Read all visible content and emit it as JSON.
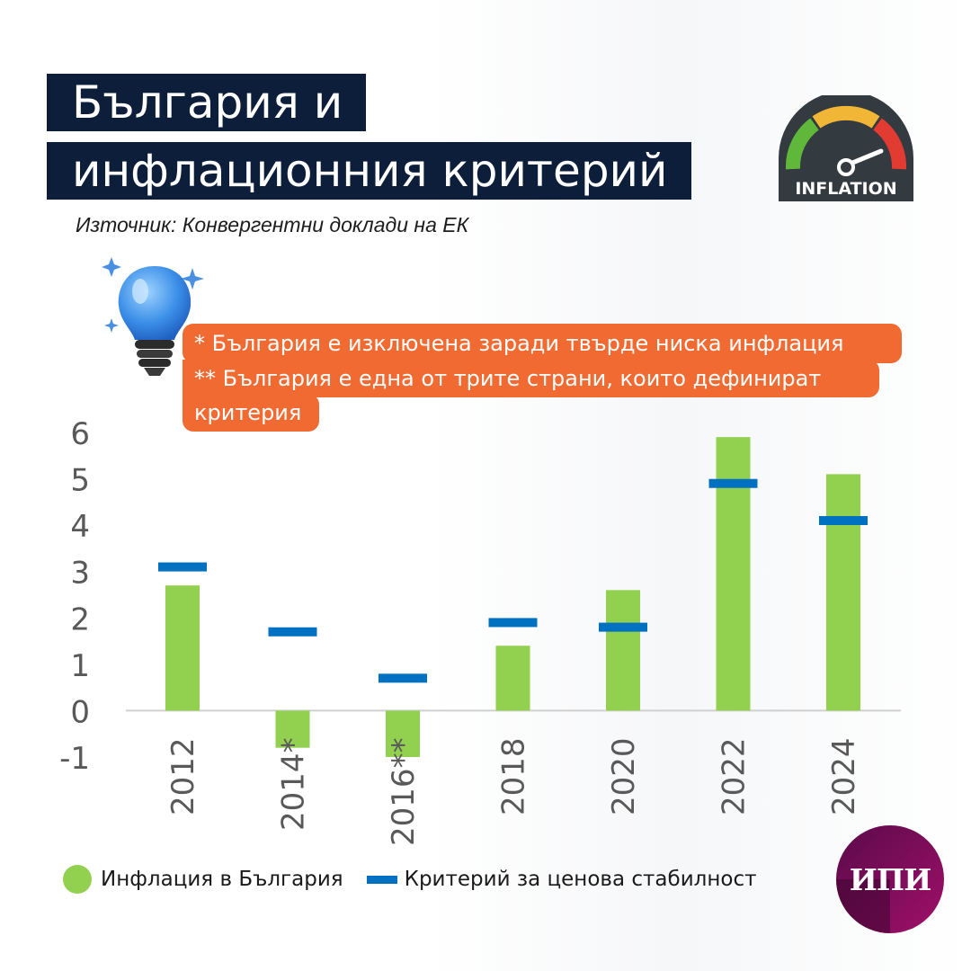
{
  "title": {
    "line1": "България и",
    "line2": "инфлационния критерий"
  },
  "source": "Източник: Конвергентни доклади на ЕК",
  "gauge_badge": {
    "label": "INFLATION",
    "icon": "speedometer-icon"
  },
  "decoration": {
    "icon": "lightbulb-icon"
  },
  "note": {
    "line1": "* България е изключена заради твърде ниска инфлация",
    "line2": "** България е една от трите страни, които дефинират",
    "line3": "критерия"
  },
  "legend": {
    "bars": "Инфлация в България",
    "criterion": "Критерий за ценова стабилност"
  },
  "logo": {
    "text": "ИПИ"
  },
  "colors": {
    "bar": "#92d050",
    "criterion": "#0070c0",
    "note": "#f06a32",
    "title_bg": "#0c1e3a",
    "logo": "#7a0b5a"
  },
  "chart_data": {
    "type": "bar",
    "categories": [
      "2012",
      "2014*",
      "2016**",
      "2018",
      "2020",
      "2022",
      "2024"
    ],
    "series": [
      {
        "name": "Инфлация в България",
        "type": "bar",
        "values": [
          2.7,
          -0.8,
          -1.0,
          1.4,
          2.6,
          5.9,
          5.1
        ]
      },
      {
        "name": "Критерий за ценова стабилност",
        "type": "marker",
        "values": [
          3.1,
          1.7,
          0.7,
          1.9,
          1.8,
          4.9,
          4.1
        ]
      }
    ],
    "yticks": [
      "-1",
      "0",
      "1",
      "2",
      "3",
      "4",
      "5",
      "6"
    ],
    "ylim": [
      -1,
      6
    ],
    "grid": false,
    "legend_position": "bottom"
  }
}
